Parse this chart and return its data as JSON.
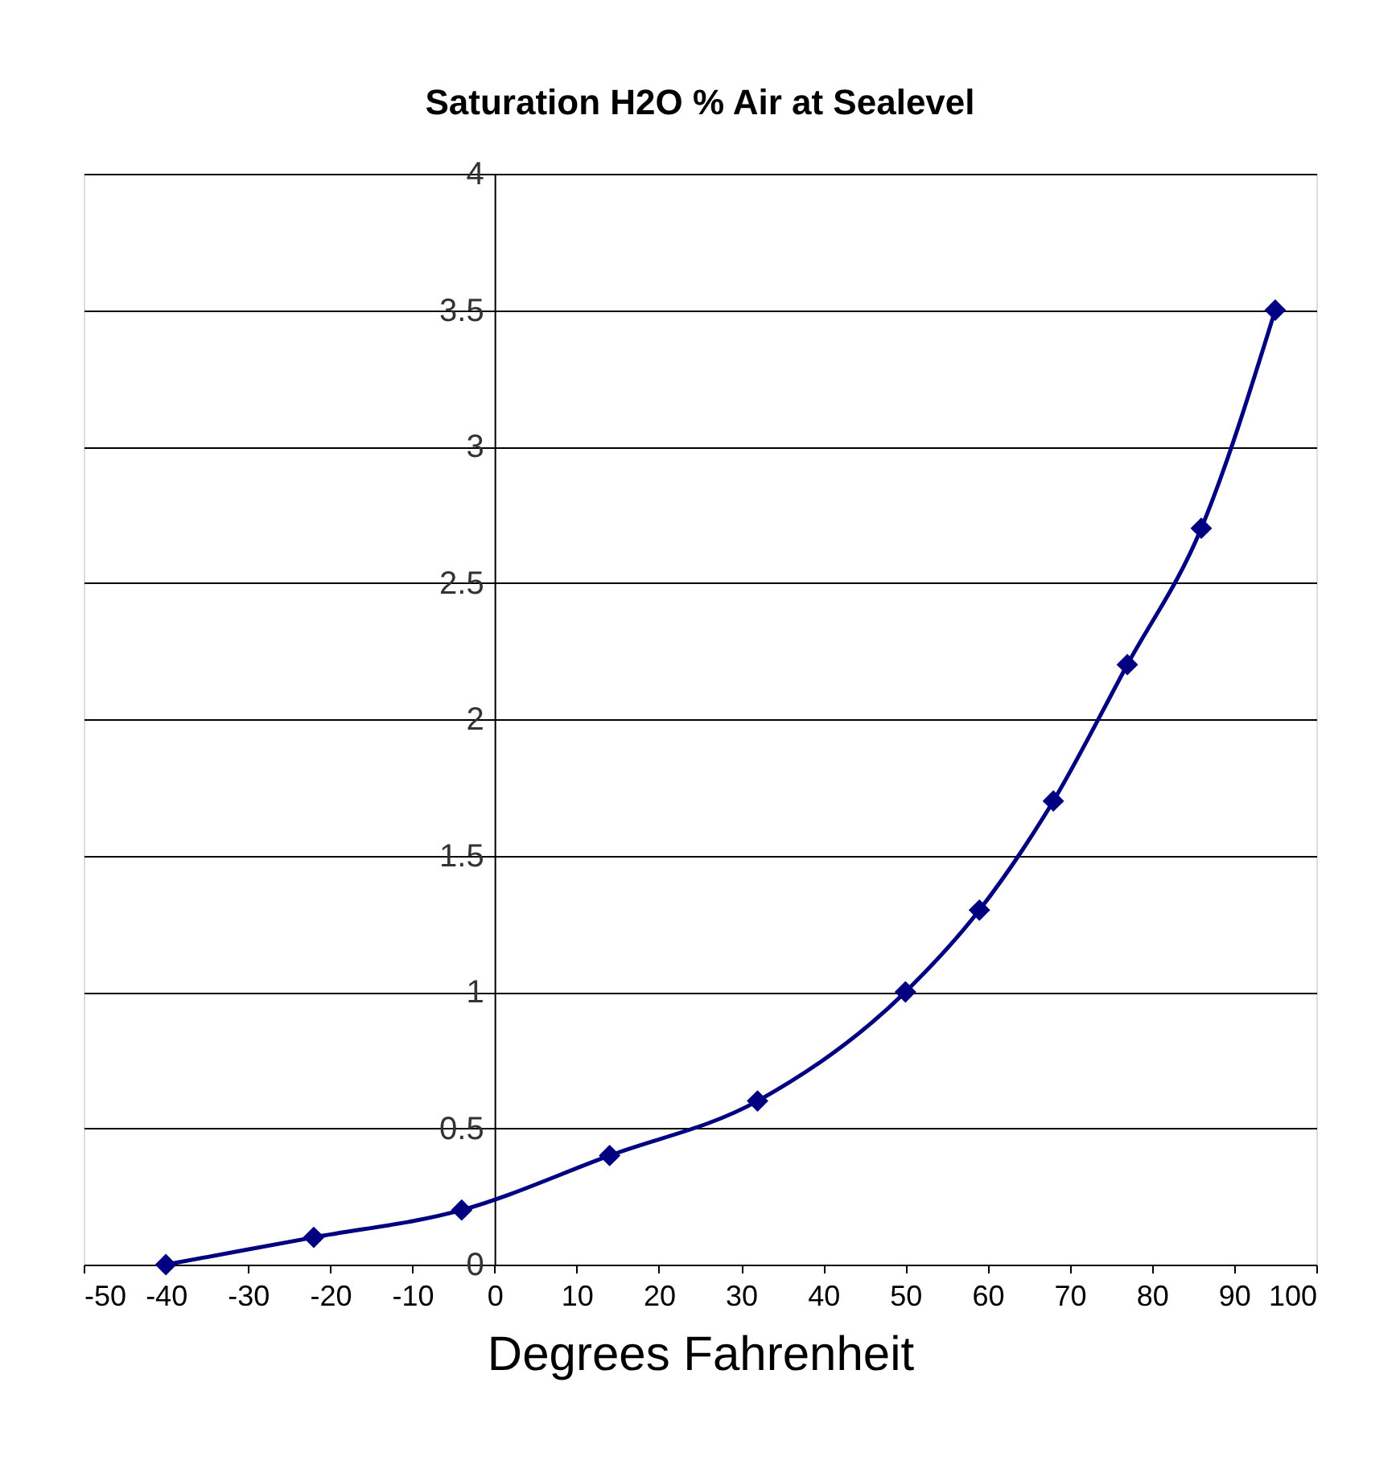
{
  "chart_data": {
    "type": "line",
    "title": "Saturation H2O % Air at Sealevel",
    "xlabel": "Degrees Fahrenheit",
    "x": [
      -40,
      -22,
      -4,
      14,
      32,
      50,
      59,
      68,
      77,
      86,
      95
    ],
    "series": [
      {
        "color": "#000080",
        "values": [
          0,
          0.1,
          0.2,
          0.4,
          0.6,
          1.0,
          1.3,
          1.7,
          2.2,
          2.7,
          3.5
        ]
      }
    ],
    "xlim": [
      -50,
      100
    ],
    "xticks": [
      -50,
      -40,
      -30,
      -20,
      -10,
      0,
      10,
      20,
      30,
      40,
      50,
      60,
      70,
      80,
      90,
      100
    ],
    "ylim": [
      0,
      4
    ],
    "yticks": [
      0,
      0.5,
      1,
      1.5,
      2,
      2.5,
      3,
      3.5,
      4
    ],
    "grid": "y",
    "marker": "diamond",
    "line_style": "solid"
  }
}
